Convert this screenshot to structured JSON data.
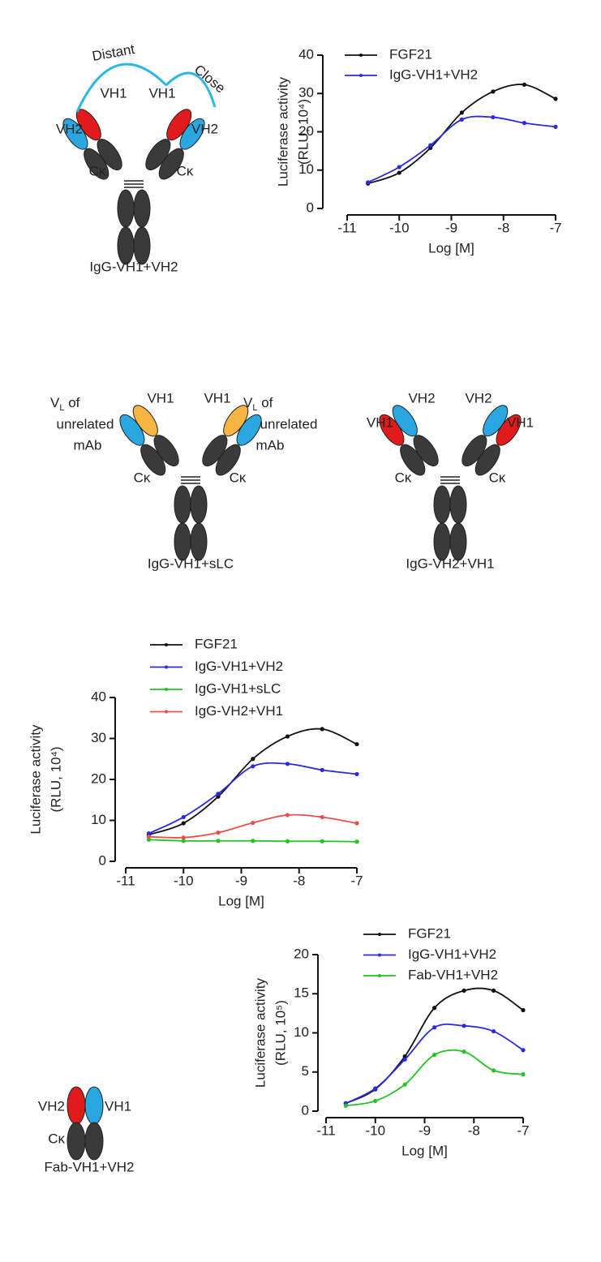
{
  "chart_data": [
    {
      "type": "line",
      "ylabel": "Luciferase activity",
      "ylabel_unit": "(RLU, 10⁴)",
      "xlabel": "Log [M]",
      "x": [
        -10.6,
        -10,
        -9.4,
        -8.8,
        -8.2,
        -7.6,
        -7
      ],
      "xlim": [
        -11,
        -7
      ],
      "xticks": [
        -11,
        -10,
        -9,
        -8,
        -7
      ],
      "ylim": [
        0,
        40
      ],
      "yticks": [
        0,
        10,
        20,
        30,
        40
      ],
      "series": [
        {
          "name": "FGF21",
          "color": "#111111",
          "values": [
            6.5,
            9.3,
            15.8,
            25,
            30.5,
            32.3,
            28.6
          ]
        },
        {
          "name": "IgG-VH1+VH2",
          "color": "#2a2ae0",
          "values": [
            6.8,
            10.8,
            16.5,
            23.2,
            23.8,
            22.3,
            21.3
          ]
        }
      ]
    },
    {
      "type": "line",
      "ylabel": "Luciferase activity",
      "ylabel_unit": "(RLU, 10⁴)",
      "xlabel": "Log [M]",
      "x": [
        -10.6,
        -10,
        -9.4,
        -8.8,
        -8.2,
        -7.6,
        -7
      ],
      "xlim": [
        -11,
        -7
      ],
      "xticks": [
        -11,
        -10,
        -9,
        -8,
        -7
      ],
      "ylim": [
        0,
        40
      ],
      "yticks": [
        0,
        10,
        20,
        30,
        40
      ],
      "series": [
        {
          "name": "FGF21",
          "color": "#111111",
          "values": [
            6.5,
            9.3,
            15.8,
            25,
            30.5,
            32.3,
            28.6
          ]
        },
        {
          "name": "IgG-VH1+VH2",
          "color": "#2a2ae0",
          "values": [
            6.8,
            10.8,
            16.5,
            23.2,
            23.8,
            22.3,
            21.3
          ]
        },
        {
          "name": "IgG-VH1+sLC",
          "color": "#22c322",
          "values": [
            5.3,
            5,
            5,
            5,
            4.9,
            4.9,
            4.8
          ]
        },
        {
          "name": "IgG-VH2+VH1",
          "color": "#e85050",
          "values": [
            6,
            5.8,
            7,
            9.4,
            11.3,
            10.8,
            9.3
          ]
        }
      ]
    },
    {
      "type": "line",
      "ylabel": "Luciferase activity",
      "ylabel_unit": "(RLU, 10⁵)",
      "xlabel": "Log [M]",
      "x": [
        -10.6,
        -10,
        -9.4,
        -8.8,
        -8.2,
        -7.6,
        -7
      ],
      "xlim": [
        -11,
        -7
      ],
      "xticks": [
        -11,
        -10,
        -9,
        -8,
        -7
      ],
      "ylim": [
        0,
        20
      ],
      "yticks": [
        0,
        5,
        10,
        15,
        20
      ],
      "series": [
        {
          "name": "FGF21",
          "color": "#111111",
          "values": [
            1,
            2.8,
            7,
            13.2,
            15.4,
            15.4,
            12.9
          ]
        },
        {
          "name": "IgG-VH1+VH2",
          "color": "#2a2ae0",
          "values": [
            1,
            2.9,
            6.6,
            10.7,
            10.9,
            10.2,
            7.8
          ]
        },
        {
          "name": "Fab-VH1+VH2",
          "color": "#22c322",
          "values": [
            0.7,
            1.3,
            3.4,
            7.2,
            7.6,
            5.2,
            4.7
          ]
        }
      ]
    }
  ],
  "diagrams": [
    {
      "title": "IgG-VH1+VH2",
      "labels": [
        "VH2",
        "VH1",
        "VH1",
        "VH2",
        "Cκ",
        "Cκ"
      ],
      "annotations": [
        "Distant",
        "Close"
      ]
    },
    {
      "title": "IgG-VH1+sLC",
      "labels": [
        "VH1",
        "VH1",
        "Cκ",
        "Cκ"
      ],
      "light_chain": [
        "V",
        "L",
        " of",
        "unrelated",
        "mAb"
      ]
    },
    {
      "title": "IgG-VH2+VH1",
      "labels": [
        "VH2",
        "VH2",
        "VH1",
        "VH1",
        "Cκ",
        "Cκ"
      ]
    },
    {
      "title": "Fab-VH1+VH2",
      "labels": [
        "VH2",
        "VH1",
        "Cκ"
      ]
    }
  ]
}
